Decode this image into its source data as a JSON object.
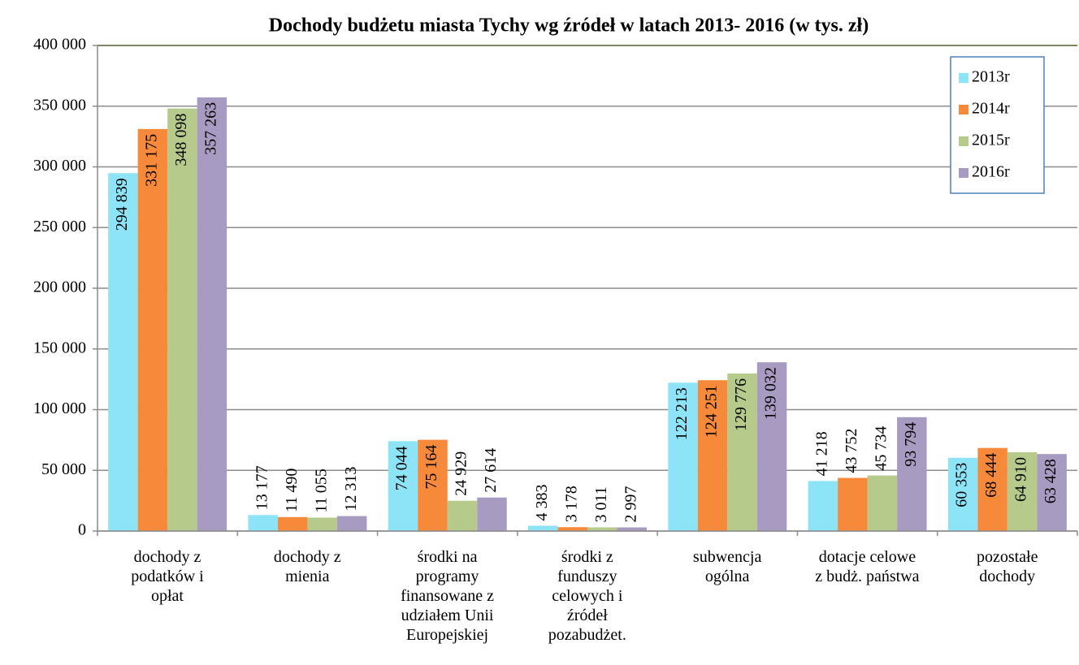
{
  "chart_data": {
    "type": "bar",
    "title": "Dochody budżetu miasta Tychy wg źródeł w latach 2013- 2016 (w tys. zł)",
    "categories": [
      "dochody z\npodatków i\nopłat",
      "dochody z\nmienia",
      "środki na\nprogramy\nfinansowane z\nudziałem Unii\nEuropejskiej",
      "środki z\nfunduszy\ncelowych i\nźródeł\npozabudżet.",
      "subwencja\nogólna",
      "dotacje celowe\nz budż. państwa",
      "pozostałe\ndochody"
    ],
    "series": [
      {
        "name": "2013r",
        "color": "#8ee4f7",
        "values": [
          294839,
          13177,
          74044,
          4383,
          122213,
          41218,
          60353
        ],
        "value_labels": [
          "294 839",
          "13 177",
          "74 044",
          "4 383",
          "122 213",
          "41 218",
          "60 353"
        ]
      },
      {
        "name": "2014r",
        "color": "#f7893a",
        "values": [
          331175,
          11490,
          75164,
          3178,
          124251,
          43752,
          68444
        ],
        "value_labels": [
          "331 175",
          "11 490",
          "75 164",
          "3 178",
          "124 251",
          "43 752",
          "68 444"
        ]
      },
      {
        "name": "2015r",
        "color": "#b6ca8c",
        "values": [
          348098,
          11055,
          24929,
          3011,
          129776,
          45734,
          64910
        ],
        "value_labels": [
          "348 098",
          "11 055",
          "24 929",
          "3 011",
          "129 776",
          "45 734",
          "64 910"
        ]
      },
      {
        "name": "2016r",
        "color": "#a89bc1",
        "values": [
          357263,
          12313,
          27614,
          2997,
          139032,
          93794,
          63428
        ],
        "value_labels": [
          "357 263",
          "12 313",
          "27 614",
          "2 997",
          "139 032",
          "93 794",
          "63 428"
        ]
      }
    ],
    "ylim": [
      0,
      400000
    ],
    "yticks": [
      0,
      {
        "value": 50000,
        "label": "50 000"
      },
      {
        "value": 100000,
        "label": "100 000"
      },
      {
        "value": 150000,
        "label": "150 000"
      },
      {
        "value": 200000,
        "label": "200 000"
      },
      {
        "value": 250000,
        "label": "250 000"
      },
      {
        "value": 300000,
        "label": "300 000"
      },
      {
        "value": 350000,
        "label": "350 000"
      },
      {
        "value": 400000,
        "label": "400 000"
      }
    ],
    "grid": true,
    "legend": "top-right"
  }
}
